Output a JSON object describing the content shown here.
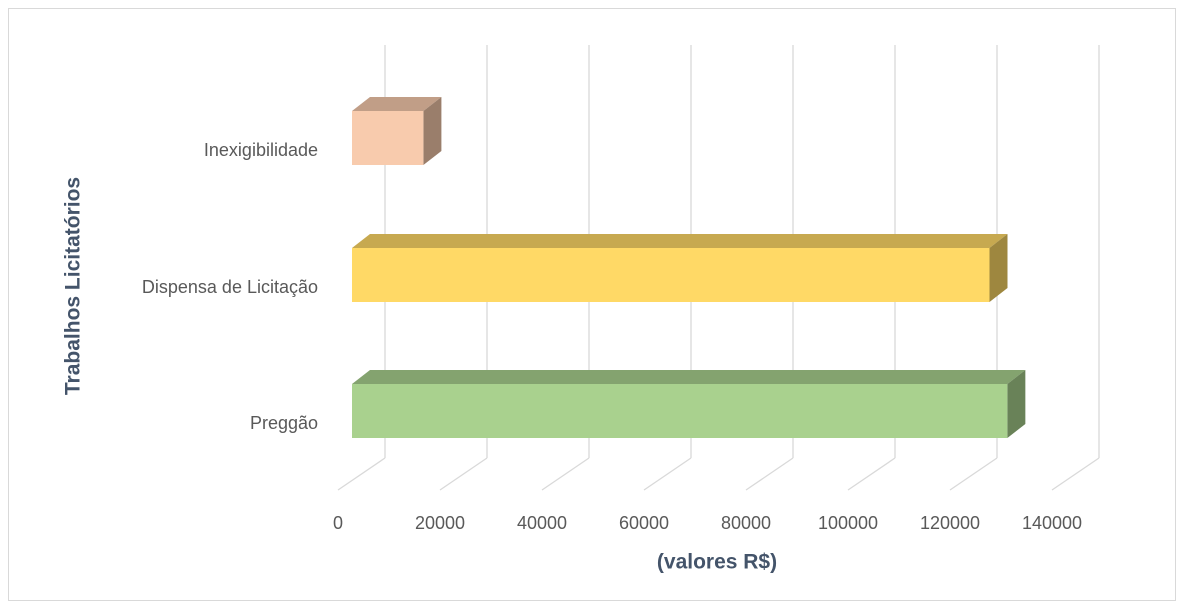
{
  "chart_data": {
    "type": "bar3d_horizontal",
    "xlabel": "(valores R$)",
    "ylabel": "Trabalhos Licitatórios",
    "categories": [
      "Inexigibilidade",
      "Dispensa de Licitação",
      "Preggão"
    ],
    "values": [
      14000,
      125000,
      128500
    ],
    "colors": [
      "#f8cbad",
      "#ffd966",
      "#a9d18e"
    ],
    "xlim": [
      0,
      140000
    ],
    "xticks": [
      0,
      20000,
      40000,
      60000,
      80000,
      100000,
      120000,
      140000
    ],
    "grid": true
  }
}
